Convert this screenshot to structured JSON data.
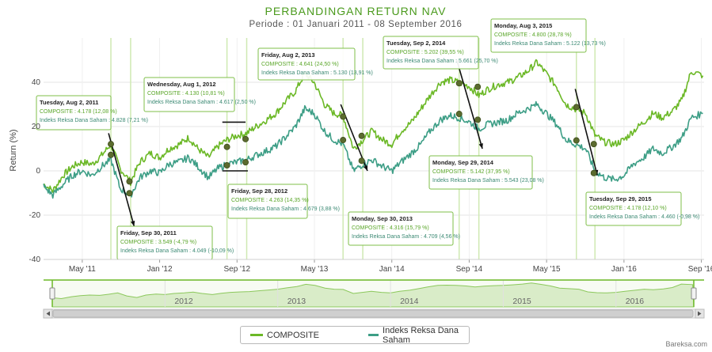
{
  "chart_data": {
    "type": "line",
    "title": "PERBANDINGAN RETURN NAV",
    "subtitle": "Periode : 01 Januari 2011 - 08 September 2016",
    "xlabel": "",
    "ylabel": "Return (%)",
    "ylim": [
      -40,
      60
    ],
    "yticks": [
      "40",
      "20",
      "0",
      "-20",
      "-40"
    ],
    "xticks": [
      "May '11",
      "Jan '12",
      "Sep '12",
      "May '13",
      "Jan '14",
      "Sep '14",
      "May '15",
      "Jan '16",
      "Sep '16"
    ],
    "series": [
      {
        "name": "COMPOSITE",
        "color": "#6bb826",
        "x": [
          2011.0,
          2011.08,
          2011.17,
          2011.25,
          2011.33,
          2011.42,
          2011.5,
          2011.58,
          2011.66,
          2011.75,
          2011.83,
          2011.92,
          2012.0,
          2012.08,
          2012.17,
          2012.25,
          2012.33,
          2012.42,
          2012.5,
          2012.58,
          2012.67,
          2012.75,
          2012.83,
          2012.92,
          2013.0,
          2013.08,
          2013.17,
          2013.25,
          2013.33,
          2013.42,
          2013.5,
          2013.58,
          2013.67,
          2013.75,
          2013.83,
          2013.92,
          2014.0,
          2014.08,
          2014.17,
          2014.25,
          2014.33,
          2014.42,
          2014.5,
          2014.58,
          2014.67,
          2014.75,
          2014.83,
          2014.92,
          2015.0,
          2015.08,
          2015.17,
          2015.25,
          2015.33,
          2015.42,
          2015.5,
          2015.58,
          2015.67,
          2015.75,
          2015.83,
          2015.92,
          2016.0,
          2016.08,
          2016.17,
          2016.25,
          2016.33,
          2016.42,
          2016.5,
          2016.58,
          2016.68
        ],
        "values": [
          -6,
          -9,
          -2,
          2,
          4,
          3,
          7,
          12,
          1,
          -5,
          4,
          8,
          6,
          10,
          12,
          15,
          10,
          6,
          11,
          14,
          16,
          17,
          20,
          23,
          26,
          31,
          36,
          44,
          40,
          30,
          26,
          25,
          10,
          14,
          18,
          14,
          12,
          18,
          22,
          28,
          34,
          40,
          41,
          40,
          38,
          34,
          37,
          39,
          40,
          42,
          45,
          49,
          44,
          38,
          30,
          28,
          26,
          16,
          13,
          12,
          14,
          18,
          22,
          26,
          24,
          27,
          32,
          45,
          43
        ]
      },
      {
        "name": "Indeks Reksa Dana Saham",
        "color": "#3d9e86",
        "x": [
          2011.0,
          2011.08,
          2011.17,
          2011.25,
          2011.33,
          2011.42,
          2011.5,
          2011.58,
          2011.66,
          2011.75,
          2011.83,
          2011.92,
          2012.0,
          2012.08,
          2012.17,
          2012.25,
          2012.33,
          2012.42,
          2012.5,
          2012.58,
          2012.67,
          2012.75,
          2012.83,
          2012.92,
          2013.0,
          2013.08,
          2013.17,
          2013.25,
          2013.33,
          2013.42,
          2013.5,
          2013.58,
          2013.67,
          2013.75,
          2013.83,
          2013.92,
          2014.0,
          2014.08,
          2014.17,
          2014.25,
          2014.33,
          2014.42,
          2014.5,
          2014.58,
          2014.67,
          2014.75,
          2014.83,
          2014.92,
          2015.0,
          2015.08,
          2015.17,
          2015.25,
          2015.33,
          2015.42,
          2015.5,
          2015.58,
          2015.67,
          2015.75,
          2015.83,
          2015.92,
          2016.0,
          2016.08,
          2016.17,
          2016.25,
          2016.33,
          2016.42,
          2016.5,
          2016.58,
          2016.68
        ],
        "values": [
          -7,
          -11,
          -6,
          -2,
          0,
          -2,
          2,
          5,
          -8,
          -11,
          -3,
          0,
          -1,
          3,
          4,
          6,
          2,
          -3,
          1,
          3,
          4,
          5,
          7,
          9,
          11,
          15,
          20,
          28,
          26,
          18,
          14,
          12,
          0,
          3,
          5,
          2,
          0,
          4,
          8,
          12,
          18,
          23,
          25,
          24,
          22,
          19,
          21,
          22,
          23,
          26,
          28,
          30,
          26,
          21,
          14,
          12,
          10,
          0,
          -3,
          -4,
          -2,
          3,
          6,
          10,
          8,
          11,
          15,
          24,
          26
        ]
      }
    ],
    "markers": [
      {
        "date": 2011.58,
        "series": 0,
        "value": 12.08
      },
      {
        "date": 2011.58,
        "series": 1,
        "value": 7.21
      },
      {
        "date": 2011.74,
        "series": 0,
        "value": -4.79
      },
      {
        "date": 2011.74,
        "series": 1,
        "value": -10.09
      },
      {
        "date": 2012.58,
        "series": 0,
        "value": 10.81
      },
      {
        "date": 2012.58,
        "series": 1,
        "value": 2.5
      },
      {
        "date": 2012.74,
        "series": 0,
        "value": 14.35
      },
      {
        "date": 2012.74,
        "series": 1,
        "value": 3.88
      },
      {
        "date": 2013.58,
        "series": 0,
        "value": 24.5
      },
      {
        "date": 2013.58,
        "series": 1,
        "value": 13.91
      },
      {
        "date": 2013.74,
        "series": 0,
        "value": 15.79
      },
      {
        "date": 2013.74,
        "series": 1,
        "value": 4.56
      },
      {
        "date": 2014.58,
        "series": 0,
        "value": 39.55
      },
      {
        "date": 2014.58,
        "series": 1,
        "value": 25.7
      },
      {
        "date": 2014.74,
        "series": 0,
        "value": 37.95
      },
      {
        "date": 2014.74,
        "series": 1,
        "value": 23.08
      },
      {
        "date": 2015.59,
        "series": 0,
        "value": 28.78
      },
      {
        "date": 2015.59,
        "series": 1,
        "value": 13.73
      },
      {
        "date": 2015.74,
        "series": 0,
        "value": 12.1
      },
      {
        "date": 2015.74,
        "series": 1,
        "value": -0.98
      }
    ],
    "annotations": [
      {
        "date": "Tuesday, Aug 2, 2011",
        "composite": "COMPOSITE : 4.178 (12,08 %)",
        "index": "Indeks Reksa Dana Saham : 4.828 (7,21 %)"
      },
      {
        "date": "Friday, Sep 30, 2011",
        "composite": "COMPOSITE : 3.549 (-4,79 %)",
        "index": "Indeks Reksa Dana Saham : 4.049 (-10,09 %)"
      },
      {
        "date": "Wednesday, Aug 1, 2012",
        "composite": "COMPOSITE : 4.130 (10,81 %)",
        "index": "Indeks Reksa Dana Saham : 4.617 (2,50 %)"
      },
      {
        "date": "Friday, Sep 28, 2012",
        "composite": "COMPOSITE : 4.263 (14,35 %)",
        "index": "Indeks Reksa Dana Saham : 4.679 (3,88 %)"
      },
      {
        "date": "Friday, Aug 2, 2013",
        "composite": "COMPOSITE : 4.641 (24,50 %)",
        "index": "Indeks Reksa Dana Saham : 5.130 (13,91 %)"
      },
      {
        "date": "Monday, Sep 30, 2013",
        "composite": "COMPOSITE : 4.316 (15,79 %)",
        "index": "Indeks Reksa Dana Saham : 4.709 (4,56 %)"
      },
      {
        "date": "Tuesday, Sep 2, 2014",
        "composite": "COMPOSITE : 5.202 (39,55 %)",
        "index": "Indeks Reksa Dana Saham : 5.661 (25,70 %)"
      },
      {
        "date": "Monday, Sep 29, 2014",
        "composite": "COMPOSITE : 5.142 (37,95 %)",
        "index": "Indeks Reksa Dana Saham : 5.543 (23,08 %)"
      },
      {
        "date": "Monday, Aug 3, 2015",
        "composite": "COMPOSITE : 4.800 (28,78 %)",
        "index": "Indeks Reksa Dana Saham : 5.122 (13,73 %)"
      },
      {
        "date": "Tuesday, Sep 29, 2015",
        "composite": "COMPOSITE : 4.178 (12,10 %)",
        "index": "Indeks Reksa Dana Saham : 4.460 (-0,98 %)"
      }
    ],
    "navigator": {
      "years": [
        "2012",
        "2013",
        "2014",
        "2015",
        "2016"
      ]
    },
    "legend": "bottom-center"
  },
  "credit": "Bareksa.com"
}
